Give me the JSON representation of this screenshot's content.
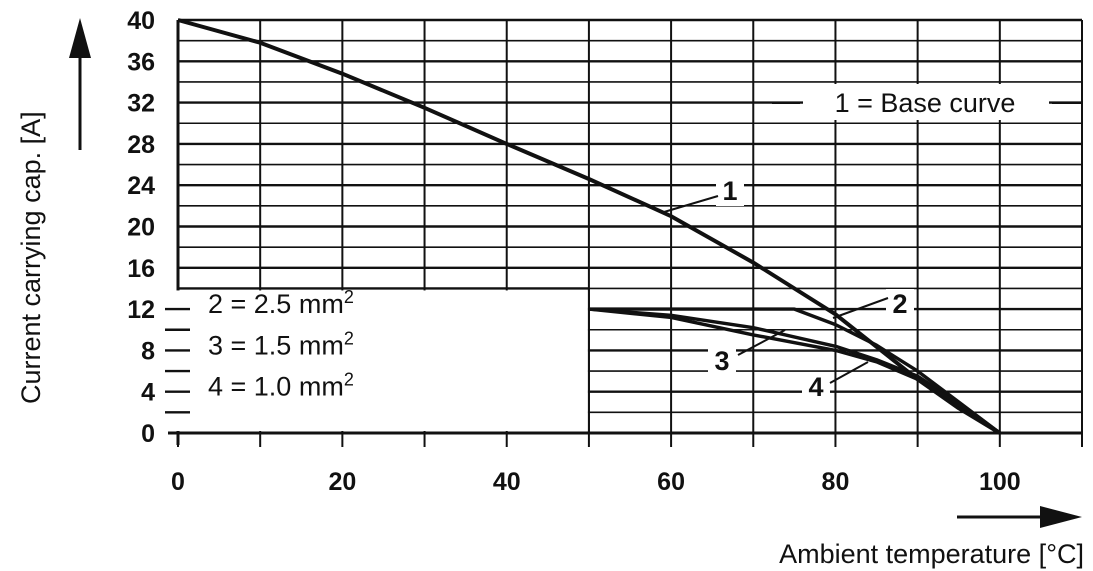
{
  "chart_data": {
    "type": "line",
    "xlabel": "Ambient temperature [°C]",
    "ylabel": "Current carrying cap. [A]",
    "xlim": [
      0,
      110
    ],
    "ylim": [
      0,
      40
    ],
    "x_ticks": [
      "0",
      "20",
      "40",
      "60",
      "80",
      "100"
    ],
    "y_ticks": [
      "0",
      "4",
      "8",
      "12",
      "16",
      "20",
      "24",
      "28",
      "32",
      "36",
      "40"
    ],
    "grid": true,
    "series": [
      {
        "id": "1",
        "name": "1 = Base curve",
        "label": "1",
        "x": [
          0,
          10,
          20,
          30,
          40,
          50,
          60,
          70,
          80,
          90,
          95,
          100
        ],
        "y": [
          40,
          37.8,
          34.8,
          31.5,
          28,
          24.6,
          21,
          16.5,
          11.5,
          5.2,
          2.4,
          0
        ]
      },
      {
        "id": "2",
        "name": "2 = 2.5 mm²",
        "label": "2",
        "x": [
          50,
          60,
          70,
          75,
          80,
          85,
          90,
          95,
          100
        ],
        "y": [
          12,
          12,
          12,
          12,
          10.5,
          8.5,
          6,
          3,
          0
        ]
      },
      {
        "id": "3",
        "name": "3 = 1.5 mm²",
        "label": "3",
        "x": [
          50,
          60,
          70,
          80,
          85,
          90,
          95,
          100
        ],
        "y": [
          12,
          11.4,
          10.2,
          8.4,
          7.1,
          5.5,
          2.9,
          0
        ]
      },
      {
        "id": "4",
        "name": "4 = 1.0 mm²",
        "label": "4",
        "x": [
          50,
          60,
          70,
          80,
          85,
          90,
          95,
          100
        ],
        "y": [
          12,
          11.2,
          9.5,
          8,
          6.9,
          5.2,
          2.8,
          0
        ]
      }
    ]
  },
  "legend": {
    "base": "1 = Base curve",
    "items": [
      {
        "prefix": "2 = 2.5 mm",
        "sup": "2"
      },
      {
        "prefix": "3 = 1.5 mm",
        "sup": "2"
      },
      {
        "prefix": "4 = 1.0 mm",
        "sup": "2"
      }
    ]
  }
}
